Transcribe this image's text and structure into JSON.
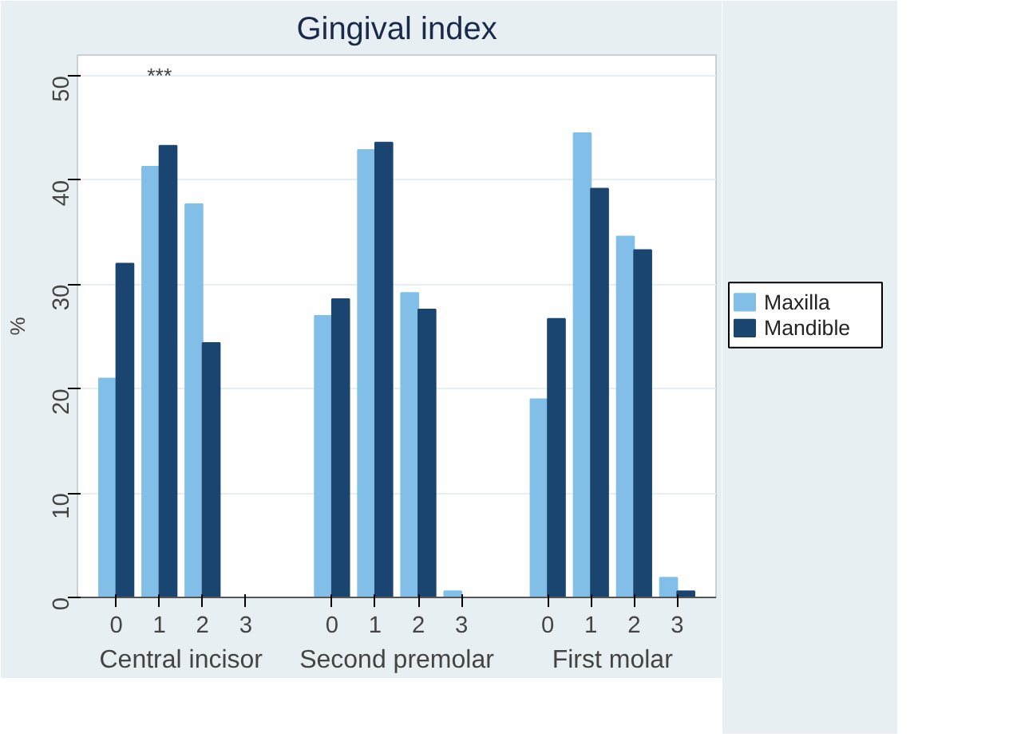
{
  "chart_data": {
    "type": "bar",
    "title": "Gingival index",
    "ylabel": "%",
    "categories": [
      "0",
      "1",
      "2",
      "3",
      "0",
      "1",
      "2",
      "3",
      "0",
      "1",
      "2",
      "3"
    ],
    "series": [
      {
        "name": "Maxilla",
        "color": "#82bfe8",
        "values": [
          21,
          41.3,
          37.7,
          0,
          27,
          42.9,
          29.2,
          0.6,
          19,
          44.5,
          34.6,
          1.9
        ]
      },
      {
        "name": "Mandible",
        "color": "#1a4571",
        "values": [
          32,
          43.3,
          24.4,
          0,
          28.6,
          43.6,
          27.6,
          0,
          26.7,
          39.2,
          33.3,
          0.6
        ]
      }
    ],
    "ylim": [
      0,
      52
    ],
    "yticks": [
      0,
      10,
      20,
      30,
      40,
      50
    ],
    "grid": "y",
    "legend": "right",
    "annotations": [
      "Central incisor",
      "Second premolar",
      "First molar",
      "***"
    ]
  }
}
